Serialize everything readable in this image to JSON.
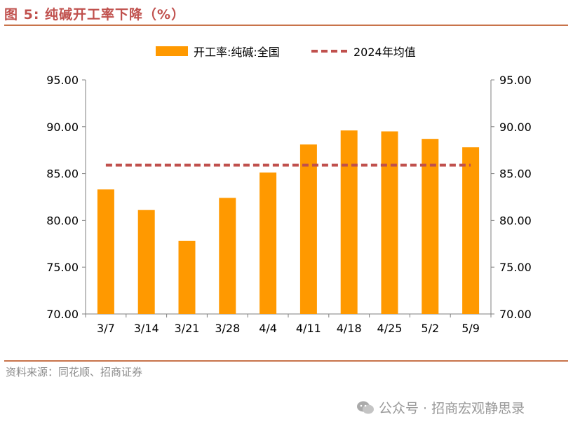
{
  "figure_title": "图 5:  纯碱开工率下降（%）",
  "source": "资料来源：同花顺、招商证券",
  "watermark": "公众号 · 招商宏观静思录",
  "colors": {
    "bar": "#ff9900",
    "avg_line": "#c0504d",
    "title": "#c0504d",
    "rule": "#c8734a"
  },
  "chart_data": {
    "type": "bar",
    "title": "",
    "categories": [
      "3/7",
      "3/14",
      "3/21",
      "3/28",
      "4/4",
      "4/11",
      "4/18",
      "4/25",
      "5/2",
      "5/9"
    ],
    "series": [
      {
        "name": "开工率:纯碱:全国",
        "type": "bar",
        "values": [
          83.3,
          81.1,
          77.8,
          82.4,
          85.1,
          88.1,
          89.6,
          89.5,
          88.7,
          87.8
        ]
      },
      {
        "name": "2024年均值",
        "type": "line",
        "style": "dashed",
        "values": [
          85.9,
          85.9,
          85.9,
          85.9,
          85.9,
          85.9,
          85.9,
          85.9,
          85.9,
          85.9
        ]
      }
    ],
    "ylim": [
      70,
      95
    ],
    "y_ticks": [
      "70.00",
      "75.00",
      "80.00",
      "85.00",
      "90.00",
      "95.00"
    ],
    "secondary_y_ticks": [
      "70.00",
      "75.00",
      "80.00",
      "85.00",
      "90.00",
      "95.00"
    ],
    "legend_position": "top",
    "grid": false
  }
}
